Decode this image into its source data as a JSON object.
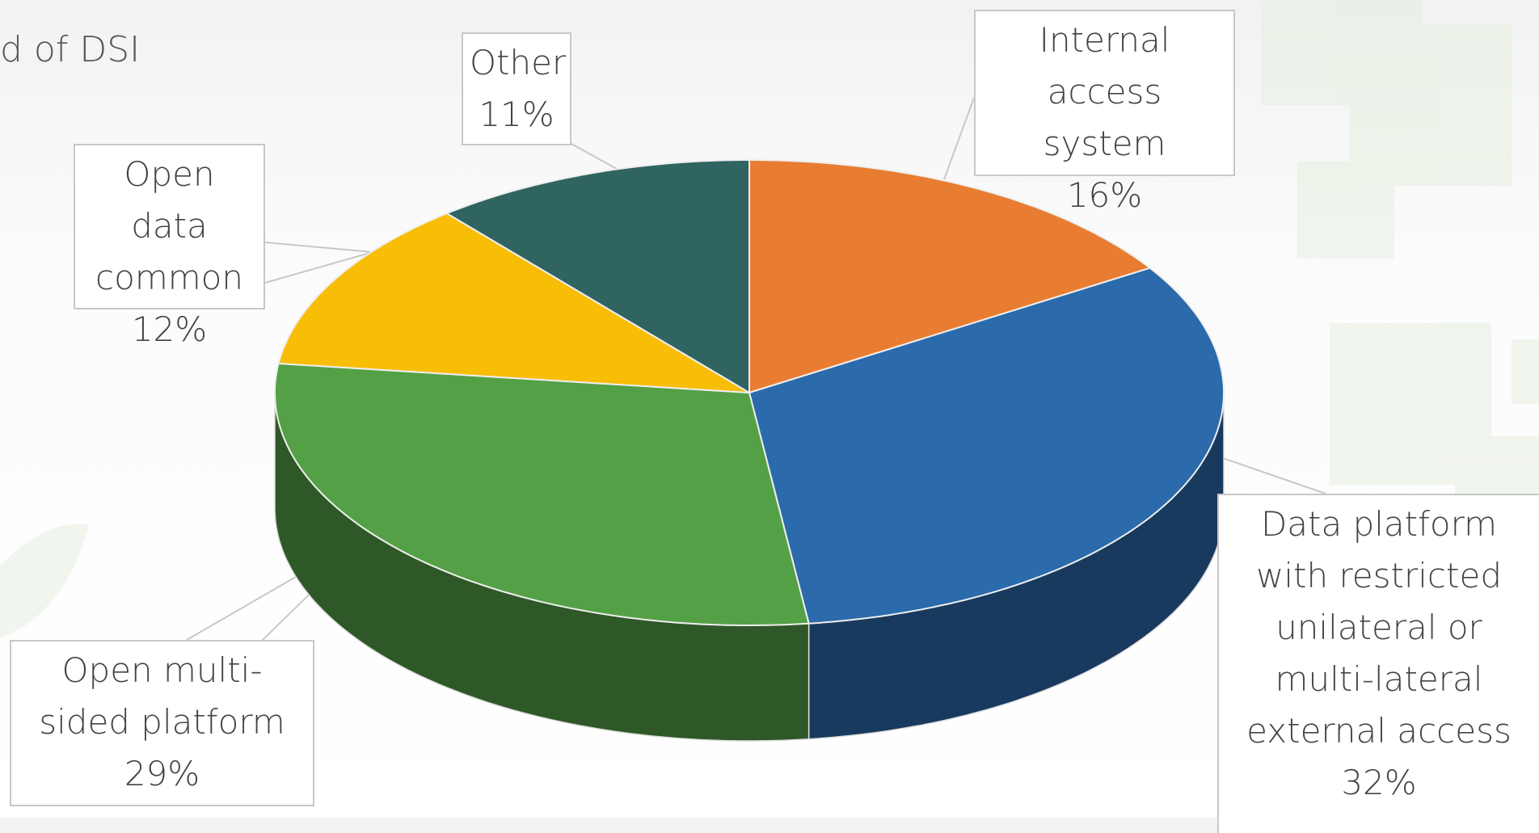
{
  "chart_data": {
    "type": "pie3d",
    "title": "d of DSI",
    "categories": [
      "Internal access system",
      "Data platform with restricted unilateral or multi-lateral external access",
      "Open multi-sided platform",
      "Open data common",
      "Other"
    ],
    "values": [
      16,
      32,
      29,
      12,
      11
    ],
    "value_labels": [
      "16%",
      "32%",
      "29%",
      "12%",
      "11%"
    ],
    "colors": [
      "#e87d32",
      "#2b6aab",
      "#54a046",
      "#f8bd05",
      "#2f6461"
    ]
  }
}
